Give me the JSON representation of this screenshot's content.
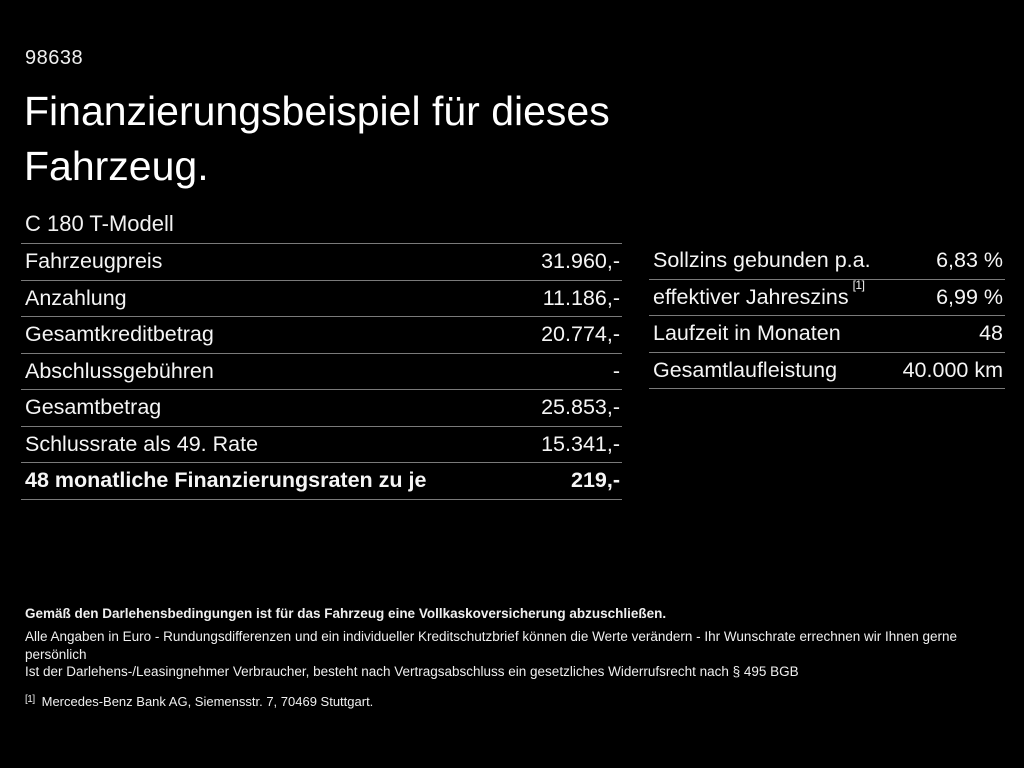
{
  "page": {
    "id_number": "98638",
    "title": "Finanzierungsbeispiel für dieses Fahrzeug.",
    "model": "C 180 T-Modell"
  },
  "left_table": {
    "rows": [
      {
        "label": "Fahrzeugpreis",
        "value": "31.960,-"
      },
      {
        "label": "Anzahlung",
        "value": "11.186,-"
      },
      {
        "label": "Gesamtkreditbetrag",
        "value": "20.774,-"
      },
      {
        "label": "Abschlussgebühren",
        "value": "-"
      },
      {
        "label": "Gesamtbetrag",
        "value": "25.853,-"
      },
      {
        "label": "Schlussrate als 49. Rate",
        "value": "15.341,-"
      },
      {
        "label": "48 monatliche Finanzierungsraten zu je",
        "value": "219,-"
      }
    ]
  },
  "right_table": {
    "rows": [
      {
        "label": "Sollzins gebunden p.a.",
        "value": "6,83 %"
      },
      {
        "label": "effektiver Jahreszins",
        "sup": "[1]",
        "value": "6,99 %"
      },
      {
        "label": "Laufzeit in Monaten",
        "value": "48"
      },
      {
        "label": "Gesamtlaufleistung",
        "value": "40.000 km"
      }
    ]
  },
  "footer": {
    "insurance_note": "Gemäß den Darlehensbedingungen ist für das Fahrzeug eine Vollkaskoversicherung abzuschließen.",
    "note_line1": "Alle Angaben in Euro - Rundungsdifferenzen und ein individueller Kreditschutzbrief können die Werte verändern - Ihr Wunschrate errechnen wir Ihnen gerne persönlich",
    "note_line2": "Ist der Darlehens-/Leasingnehmer Verbraucher, besteht nach Vertragsabschluss ein gesetzliches Widerrufsrecht nach § 495 BGB",
    "footnote_marker": "[1]",
    "footnote_text": "Mercedes-Benz Bank AG, Siemensstr. 7, 70469 Stuttgart."
  },
  "colors": {
    "background": "#000000",
    "text": "#f5f5f5",
    "divider": "#7a7a7a"
  }
}
